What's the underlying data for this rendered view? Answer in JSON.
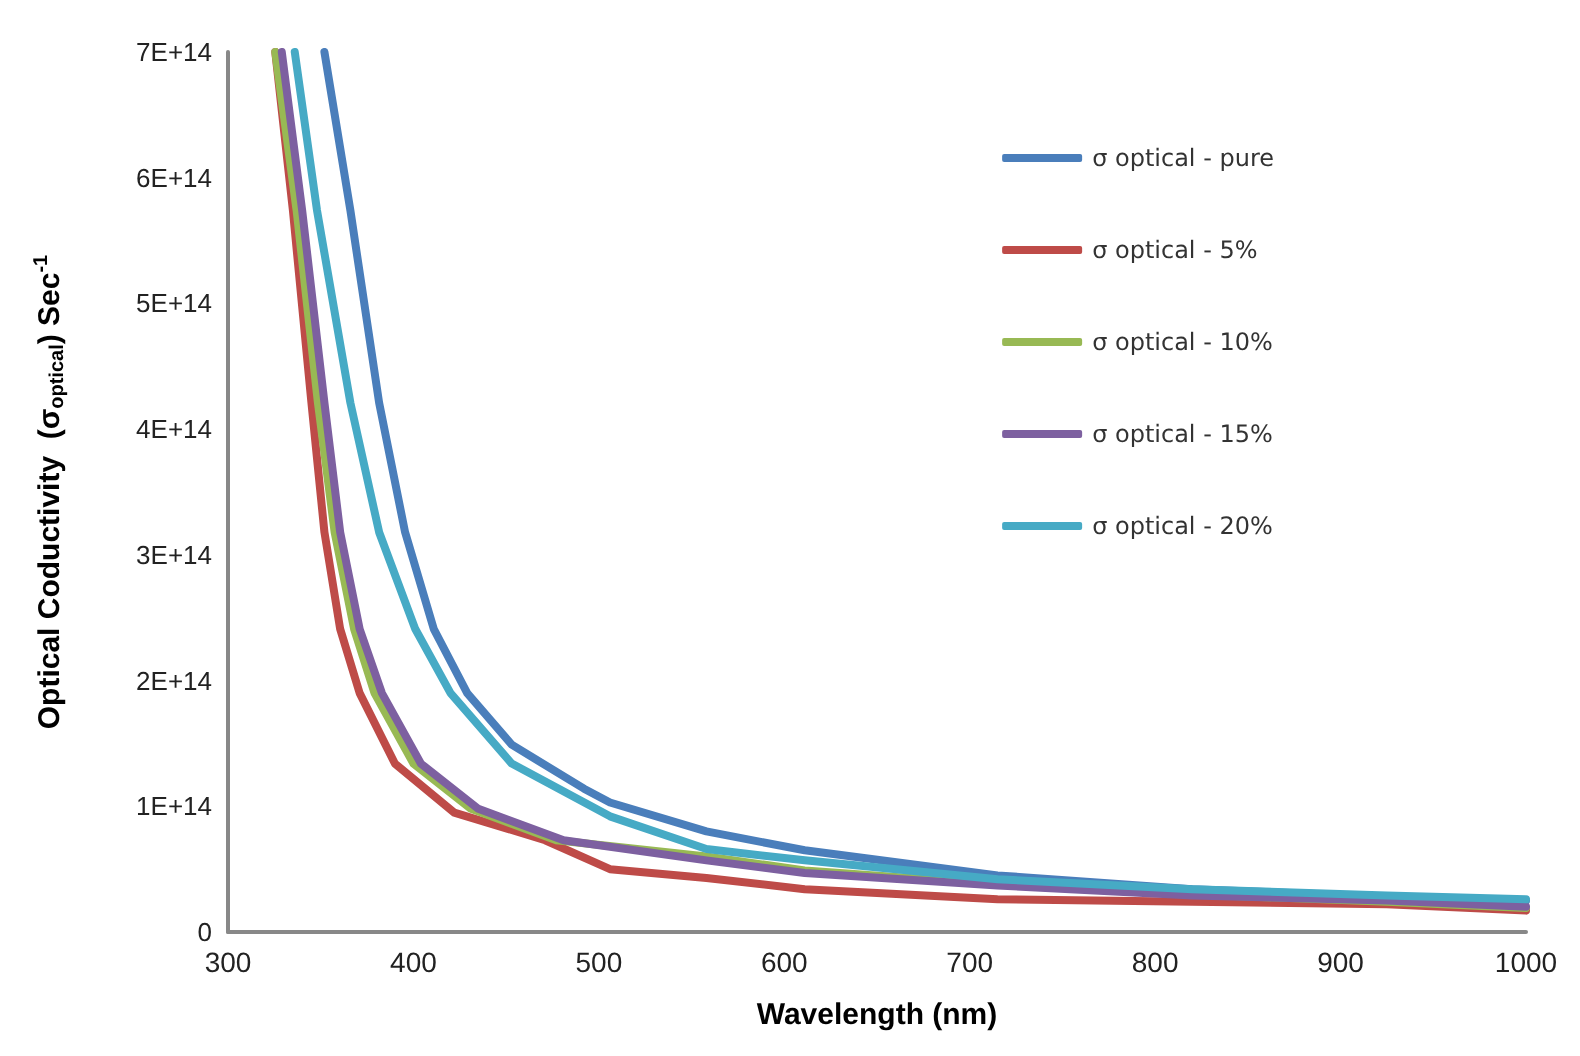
{
  "chart_data": {
    "type": "line",
    "xlabel": "Wavelength (nm)",
    "ylabel": "Optical Coductivity  (σ$_{optical}$) Sec$^{-1}$",
    "xlim": [
      300,
      1000
    ],
    "xticks": [
      300,
      400,
      500,
      600,
      700,
      800,
      900,
      1000
    ],
    "ylim": [
      0,
      700000000000000.0
    ],
    "yticks": [
      {
        "value": 0,
        "label": "0"
      },
      {
        "value": 100000000000000.0,
        "label": "1E+14"
      },
      {
        "value": 200000000000000.0,
        "label": "2E+14"
      },
      {
        "value": 300000000000000.0,
        "label": "3E+14"
      },
      {
        "value": 400000000000000.0,
        "label": "4E+14"
      },
      {
        "value": 500000000000000.0,
        "label": "5E+14"
      },
      {
        "value": 600000000000000.0,
        "label": "6E+14"
      },
      {
        "value": 700000000000000.0,
        "label": "7E+14"
      }
    ],
    "grid": false,
    "legend": "top right",
    "marker": "none",
    "line_style": "solid",
    "series": [
      {
        "name": "σ optical - pure",
        "color": "#4a7ebb",
        "x": [
          352,
          366,
          381.5,
          395.5,
          411,
          429,
          453,
          492,
          506,
          558,
          611,
          715,
          820,
          925,
          1000
        ],
        "values": [
          700000000000000.0,
          574000000000000.0,
          421000000000000.0,
          318000000000000.0,
          241000000000000.0,
          190000000000000.0,
          149000000000000.0,
          114000000000000.0,
          103000000000000.0,
          80000000000000.0,
          65000000000000.0,
          45000000000000.0,
          34000000000000.0,
          28000000000000.0,
          25000000000000.0
        ]
      },
      {
        "name": "σ optical - 5%",
        "color": "#be4b48",
        "x": [
          325.5,
          335,
          345,
          352,
          360.5,
          371,
          390,
          422,
          471,
          506,
          558,
          611,
          715,
          820,
          925,
          1000
        ],
        "values": [
          700000000000000.0,
          574000000000000.0,
          421000000000000.0,
          318000000000000.0,
          241000000000000.0,
          190000000000000.0,
          134000000000000.0,
          95000000000000.0,
          73000000000000.0,
          50000000000000.0,
          43000000000000.0,
          34000000000000.0,
          26000000000000.0,
          24000000000000.0,
          22000000000000.0,
          17000000000000.0
        ]
      },
      {
        "name": "σ optical - 10%",
        "color": "#98b954",
        "x": [
          325.5,
          337,
          348.5,
          357.5,
          368,
          379,
          400,
          431,
          477,
          558,
          611,
          715,
          820,
          925,
          1000
        ],
        "values": [
          700000000000000.0,
          574000000000000.0,
          421000000000000.0,
          318000000000000.0,
          241000000000000.0,
          190000000000000.0,
          134000000000000.0,
          98000000000000.0,
          73000000000000.0,
          60000000000000.0,
          49000000000000.0,
          38000000000000.0,
          30000000000000.0,
          24000000000000.0,
          19000000000000.0
        ]
      },
      {
        "name": "σ optical - 15%",
        "color": "#7d60a0",
        "x": [
          329,
          340,
          352,
          360.5,
          371,
          383,
          404,
          435,
          481,
          558,
          611,
          715,
          820,
          925,
          1000
        ],
        "values": [
          700000000000000.0,
          574000000000000.0,
          421000000000000.0,
          318000000000000.0,
          241000000000000.0,
          190000000000000.0,
          134000000000000.0,
          98000000000000.0,
          73000000000000.0,
          57000000000000.0,
          47000000000000.0,
          37000000000000.0,
          29000000000000.0,
          25000000000000.0,
          20000000000000.0
        ]
      },
      {
        "name": "σ optical - 20%",
        "color": "#46aac5",
        "x": [
          336,
          348,
          366,
          381.5,
          401,
          420,
          453,
          506,
          558,
          611,
          715,
          820,
          925,
          1000
        ],
        "values": [
          700000000000000.0,
          574000000000000.0,
          421000000000000.0,
          318000000000000.0,
          241000000000000.0,
          190000000000000.0,
          134000000000000.0,
          92000000000000.0,
          66000000000000.0,
          57000000000000.0,
          42000000000000.0,
          34000000000000.0,
          29000000000000.0,
          26000000000000.0
        ]
      }
    ]
  }
}
